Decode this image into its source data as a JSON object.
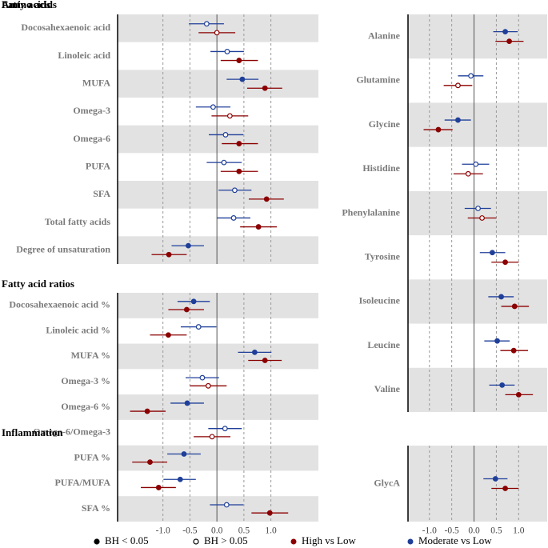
{
  "legend": {
    "significance": [
      {
        "label": "BH < 0.05",
        "filled": true
      },
      {
        "label": "BH > 0.05",
        "filled": false
      }
    ]
  },
  "chart_data": [
    {
      "type": "forest",
      "title": "Fatty acids",
      "xlim": [
        -1.84,
        1.88
      ],
      "xticks": [
        -1,
        -0.5,
        0,
        0.5,
        1
      ],
      "categories": [
        "Docosahexaenoic acid",
        "Linoleic acid",
        "MUFA",
        "Omega-3",
        "Omega-6",
        "PUFA",
        "SFA",
        "Total fatty acids",
        "Degree of unsaturation"
      ],
      "series": [
        {
          "name": "Moderate vs Low",
          "color": "#1f3f99",
          "values": [
            -0.19,
            0.19,
            0.47,
            -0.07,
            0.16,
            0.13,
            0.33,
            0.31,
            -0.53
          ],
          "lower": [
            -0.52,
            -0.12,
            0.18,
            -0.39,
            -0.15,
            -0.19,
            0.03,
            0.0,
            -0.84
          ],
          "upper": [
            0.13,
            0.5,
            0.77,
            0.25,
            0.49,
            0.46,
            0.64,
            0.62,
            -0.24
          ],
          "significant": [
            false,
            false,
            true,
            false,
            false,
            false,
            false,
            false,
            true
          ]
        },
        {
          "name": "High vs Low",
          "color": "#8b0000",
          "values": [
            0.0,
            0.41,
            0.89,
            0.24,
            0.41,
            0.41,
            0.92,
            0.77,
            -0.89
          ],
          "lower": [
            -0.34,
            0.07,
            0.56,
            -0.1,
            0.09,
            0.07,
            0.59,
            0.43,
            -1.21
          ],
          "upper": [
            0.34,
            0.76,
            1.21,
            0.58,
            0.76,
            0.76,
            1.24,
            1.11,
            -0.56
          ],
          "significant": [
            false,
            true,
            true,
            false,
            true,
            true,
            true,
            true,
            true
          ]
        }
      ]
    },
    {
      "type": "forest",
      "title": "Fatty acid ratios",
      "xlim": [
        -1.84,
        1.88
      ],
      "xticks": [
        {
          "value": -1,
          "label": "-1.0"
        },
        {
          "value": -0.5,
          "label": "-0.5"
        },
        {
          "value": 0,
          "label": "0.0"
        },
        {
          "value": 0.5,
          "label": "0.5"
        },
        {
          "value": 1,
          "label": "1.0"
        }
      ],
      "categories": [
        "Docosahexaenoic acid %",
        "Linoleic acid %",
        "MUFA %",
        "Omega-3 %",
        "Omega-6 %",
        "Omega-6/Omega-3",
        "PUFA %",
        "PUFA/MUFA",
        "SFA %"
      ],
      "series": [
        {
          "color": "#1f3f99",
          "values": [
            -0.43,
            -0.34,
            0.7,
            -0.27,
            -0.55,
            0.15,
            -0.61,
            -0.68,
            0.18
          ],
          "lower": [
            -0.73,
            -0.67,
            0.39,
            -0.58,
            -0.86,
            -0.16,
            -0.92,
            -0.99,
            -0.13
          ],
          "upper": [
            -0.13,
            -0.01,
            1.01,
            0.04,
            -0.24,
            0.46,
            -0.3,
            -0.39,
            0.49
          ],
          "significant": [
            true,
            false,
            true,
            false,
            true,
            false,
            true,
            true,
            false
          ]
        },
        {
          "color": "#8b0000",
          "values": [
            -0.56,
            -0.9,
            0.89,
            -0.16,
            -1.29,
            -0.09,
            -1.24,
            -1.08,
            0.98
          ],
          "lower": [
            -0.9,
            -1.24,
            0.58,
            -0.5,
            -1.61,
            -0.43,
            -1.57,
            -1.41,
            0.64
          ],
          "upper": [
            -0.24,
            -0.56,
            1.2,
            0.18,
            -0.95,
            0.25,
            -0.92,
            -0.76,
            1.32
          ],
          "significant": [
            true,
            true,
            true,
            false,
            true,
            false,
            true,
            true,
            true
          ]
        }
      ]
    },
    {
      "type": "forest",
      "title": "Amino acids",
      "xlim": [
        -1.48,
        1.64
      ],
      "xticks": [
        -1,
        -0.5,
        0,
        0.5,
        1
      ],
      "categories": [
        "Alanine",
        "Glutamine",
        "Glycine",
        "Histidine",
        "Phenylalanine",
        "Tyrosine",
        "Isoleucine",
        "Leucine",
        "Valine"
      ],
      "series": [
        {
          "color": "#1f3f99",
          "values": [
            0.7,
            -0.07,
            -0.36,
            0.04,
            0.09,
            0.41,
            0.61,
            0.52,
            0.63
          ],
          "lower": [
            0.43,
            -0.36,
            -0.66,
            -0.27,
            -0.21,
            0.13,
            0.32,
            0.23,
            0.34
          ],
          "upper": [
            0.98,
            0.21,
            -0.07,
            0.34,
            0.38,
            0.7,
            0.89,
            0.8,
            0.91
          ],
          "significant": [
            true,
            false,
            true,
            false,
            false,
            true,
            true,
            true,
            true
          ]
        },
        {
          "color": "#8b0000",
          "values": [
            0.79,
            -0.36,
            -0.8,
            -0.13,
            0.18,
            0.7,
            0.91,
            0.89,
            1.0
          ],
          "lower": [
            0.48,
            -0.68,
            -1.13,
            -0.46,
            -0.14,
            0.39,
            0.61,
            0.59,
            0.7
          ],
          "upper": [
            1.11,
            -0.04,
            -0.48,
            0.2,
            0.5,
            1.0,
            1.23,
            1.21,
            1.32
          ],
          "significant": [
            true,
            false,
            true,
            false,
            false,
            true,
            true,
            true,
            true
          ]
        }
      ]
    },
    {
      "type": "forest",
      "title": "Inflammation",
      "xlim": [
        -1.48,
        1.64
      ],
      "xticks": [
        {
          "value": -1,
          "label": "-1.0"
        },
        {
          "value": -0.5,
          "label": "-0.5"
        },
        {
          "value": 0,
          "label": "0.0"
        },
        {
          "value": 0.5,
          "label": "0.5"
        },
        {
          "value": 1,
          "label": "1.0"
        }
      ],
      "categories": [
        "GlycA"
      ],
      "series": [
        {
          "color": "#1f3f99",
          "values": [
            0.48
          ],
          "lower": [
            0.21
          ],
          "upper": [
            0.75
          ],
          "significant": [
            true
          ]
        },
        {
          "color": "#8b0000",
          "values": [
            0.7
          ],
          "lower": [
            0.39
          ],
          "upper": [
            1.0
          ],
          "significant": [
            true
          ]
        }
      ]
    }
  ]
}
